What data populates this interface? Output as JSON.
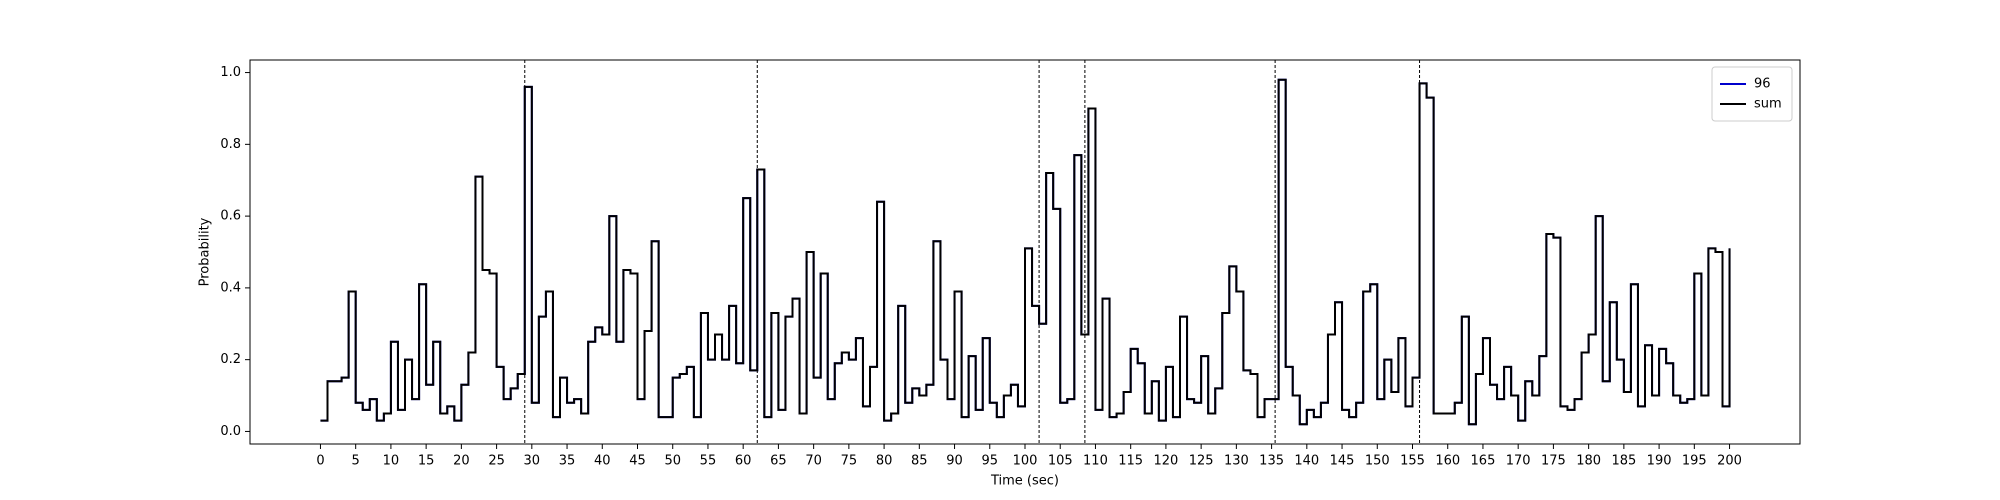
{
  "chart_data": {
    "type": "line",
    "drawstyle": "steps-post",
    "xlabel": "Time (sec)",
    "ylabel": "Probability",
    "x": [
      0,
      1,
      2,
      3,
      4,
      5,
      6,
      7,
      8,
      9,
      10,
      11,
      12,
      13,
      14,
      15,
      16,
      17,
      18,
      19,
      20,
      21,
      22,
      23,
      24,
      25,
      26,
      27,
      28,
      29,
      30,
      31,
      32,
      33,
      34,
      35,
      36,
      37,
      38,
      39,
      40,
      41,
      42,
      43,
      44,
      45,
      46,
      47,
      48,
      49,
      50,
      51,
      52,
      53,
      54,
      55,
      56,
      57,
      58,
      59,
      60,
      61,
      62,
      63,
      64,
      65,
      66,
      67,
      68,
      69,
      70,
      71,
      72,
      73,
      74,
      75,
      76,
      77,
      78,
      79,
      80,
      81,
      82,
      83,
      84,
      85,
      86,
      87,
      88,
      89,
      90,
      91,
      92,
      93,
      94,
      95,
      96,
      97,
      98,
      99,
      100,
      101,
      102,
      103,
      104,
      105,
      106,
      107,
      108,
      109,
      110,
      111,
      112,
      113,
      114,
      115,
      116,
      117,
      118,
      119,
      120,
      121,
      122,
      123,
      124,
      125,
      126,
      127,
      128,
      129,
      130,
      131,
      132,
      133,
      134,
      135,
      136,
      137,
      138,
      139,
      140,
      141,
      142,
      143,
      144,
      145,
      146,
      147,
      148,
      149,
      150,
      151,
      152,
      153,
      154,
      155,
      156,
      157,
      158,
      159,
      160,
      161,
      162,
      163,
      164,
      165,
      166,
      167,
      168,
      169,
      170,
      171,
      172,
      173,
      174,
      175,
      176,
      177,
      178,
      179,
      180,
      181,
      182,
      183,
      184,
      185,
      186,
      187,
      188,
      189,
      190,
      191,
      192,
      193,
      194,
      195,
      196,
      197,
      198,
      199,
      200
    ],
    "series": [
      {
        "name": "96",
        "color": "#0000cc",
        "values": [
          0.03,
          0.14,
          0.14,
          0.15,
          0.39,
          0.08,
          0.06,
          0.09,
          0.03,
          0.05,
          0.25,
          0.06,
          0.2,
          0.09,
          0.41,
          0.13,
          0.25,
          0.05,
          0.07,
          0.03,
          0.13,
          0.22,
          0.71,
          0.45,
          0.44,
          0.18,
          0.09,
          0.12,
          0.16,
          0.96,
          0.08,
          0.32,
          0.39,
          0.04,
          0.15,
          0.08,
          0.09,
          0.05,
          0.25,
          0.29,
          0.27,
          0.6,
          0.25,
          0.45,
          0.44,
          0.09,
          0.28,
          0.53,
          0.04,
          0.04,
          0.15,
          0.16,
          0.18,
          0.04,
          0.33,
          0.2,
          0.27,
          0.2,
          0.35,
          0.19,
          0.65,
          0.17,
          0.73,
          0.04,
          0.33,
          0.06,
          0.32,
          0.37,
          0.05,
          0.5,
          0.15,
          0.44,
          0.09,
          0.19,
          0.22,
          0.2,
          0.26,
          0.07,
          0.18,
          0.64,
          0.03,
          0.05,
          0.35,
          0.08,
          0.12,
          0.1,
          0.13,
          0.53,
          0.2,
          0.09,
          0.39,
          0.04,
          0.21,
          0.06,
          0.26,
          0.08,
          0.04,
          0.1,
          0.13,
          0.07,
          0.51,
          0.35,
          0.3,
          0.72,
          0.62,
          0.08,
          0.09,
          0.77,
          0.27,
          0.9,
          0.06,
          0.37,
          0.04,
          0.05,
          0.11,
          0.23,
          0.19,
          0.05,
          0.14,
          0.03,
          0.18,
          0.04,
          0.32,
          0.09,
          0.08,
          0.21,
          0.05,
          0.12,
          0.33,
          0.46,
          0.39,
          0.17,
          0.16,
          0.04,
          0.09,
          0.09,
          0.98,
          0.18,
          0.1,
          0.02,
          0.06,
          0.04,
          0.08,
          0.27,
          0.36,
          0.06,
          0.04,
          0.08,
          0.39,
          0.41,
          0.09,
          0.2,
          0.11,
          0.26,
          0.07,
          0.15,
          0.97,
          0.93,
          0.05,
          0.05,
          0.05,
          0.08,
          0.32,
          0.02,
          0.16,
          0.26,
          0.13,
          0.09,
          0.18,
          0.1,
          0.03,
          0.14,
          0.1,
          0.21,
          0.55,
          0.54,
          0.07,
          0.06,
          0.09,
          0.22,
          0.27,
          0.6,
          0.14,
          0.36,
          0.2,
          0.11,
          0.41,
          0.07,
          0.24,
          0.1,
          0.23,
          0.19,
          0.1,
          0.08,
          0.09,
          0.44,
          0.1,
          0.51,
          0.5,
          0.07,
          0.51
        ]
      },
      {
        "name": "sum",
        "color": "#000000",
        "values": [
          0.03,
          0.14,
          0.14,
          0.15,
          0.39,
          0.08,
          0.06,
          0.09,
          0.03,
          0.05,
          0.25,
          0.06,
          0.2,
          0.09,
          0.41,
          0.13,
          0.25,
          0.05,
          0.07,
          0.03,
          0.13,
          0.22,
          0.71,
          0.45,
          0.44,
          0.18,
          0.09,
          0.12,
          0.16,
          0.96,
          0.08,
          0.32,
          0.39,
          0.04,
          0.15,
          0.08,
          0.09,
          0.05,
          0.25,
          0.29,
          0.27,
          0.6,
          0.25,
          0.45,
          0.44,
          0.09,
          0.28,
          0.53,
          0.04,
          0.04,
          0.15,
          0.16,
          0.18,
          0.04,
          0.33,
          0.2,
          0.27,
          0.2,
          0.35,
          0.19,
          0.65,
          0.17,
          0.73,
          0.04,
          0.33,
          0.06,
          0.32,
          0.37,
          0.05,
          0.5,
          0.15,
          0.44,
          0.09,
          0.19,
          0.22,
          0.2,
          0.26,
          0.07,
          0.18,
          0.64,
          0.03,
          0.05,
          0.35,
          0.08,
          0.12,
          0.1,
          0.13,
          0.53,
          0.2,
          0.09,
          0.39,
          0.04,
          0.21,
          0.06,
          0.26,
          0.08,
          0.04,
          0.1,
          0.13,
          0.07,
          0.51,
          0.35,
          0.3,
          0.72,
          0.62,
          0.08,
          0.09,
          0.77,
          0.27,
          0.9,
          0.06,
          0.37,
          0.04,
          0.05,
          0.11,
          0.23,
          0.19,
          0.05,
          0.14,
          0.03,
          0.18,
          0.04,
          0.32,
          0.09,
          0.08,
          0.21,
          0.05,
          0.12,
          0.33,
          0.46,
          0.39,
          0.17,
          0.16,
          0.04,
          0.09,
          0.09,
          0.98,
          0.18,
          0.1,
          0.02,
          0.06,
          0.04,
          0.08,
          0.27,
          0.36,
          0.06,
          0.04,
          0.08,
          0.39,
          0.41,
          0.09,
          0.2,
          0.11,
          0.26,
          0.07,
          0.15,
          0.97,
          0.93,
          0.05,
          0.05,
          0.05,
          0.08,
          0.32,
          0.02,
          0.16,
          0.26,
          0.13,
          0.09,
          0.18,
          0.1,
          0.03,
          0.14,
          0.1,
          0.21,
          0.55,
          0.54,
          0.07,
          0.06,
          0.09,
          0.22,
          0.27,
          0.6,
          0.14,
          0.36,
          0.2,
          0.11,
          0.41,
          0.07,
          0.24,
          0.1,
          0.23,
          0.19,
          0.1,
          0.08,
          0.09,
          0.44,
          0.1,
          0.51,
          0.5,
          0.07,
          0.51
        ]
      }
    ],
    "vlines": [
      29,
      62,
      102,
      108.5,
      135.5,
      156
    ],
    "xlim": [
      -10,
      210
    ],
    "xticks": [
      0,
      5,
      10,
      15,
      20,
      25,
      30,
      35,
      40,
      45,
      50,
      55,
      60,
      65,
      70,
      75,
      80,
      85,
      90,
      95,
      100,
      105,
      110,
      115,
      120,
      125,
      130,
      135,
      140,
      145,
      150,
      155,
      160,
      165,
      170,
      175,
      180,
      185,
      190,
      195,
      200
    ],
    "ylim": [
      -0.035,
      1.035
    ],
    "yticks": [
      {
        "value": 0,
        "label": "0.0"
      },
      0.2,
      0.4,
      0.6,
      0.8,
      {
        "value": 1,
        "label": "1.0"
      }
    ],
    "legend": "upper right"
  }
}
